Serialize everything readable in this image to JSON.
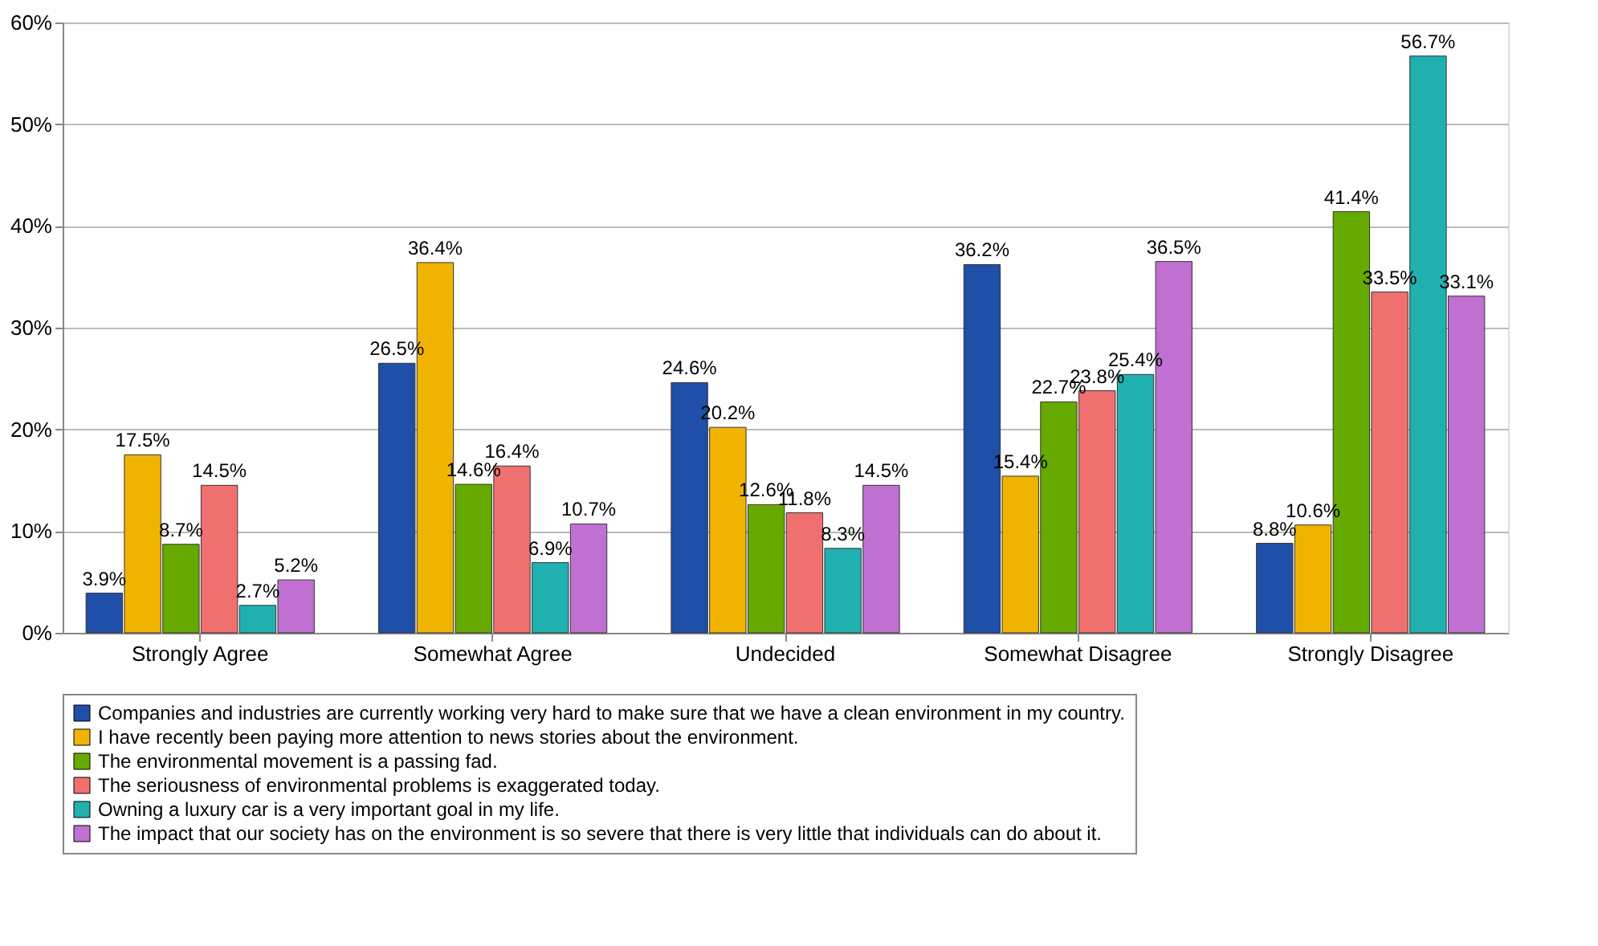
{
  "chart_data": {
    "type": "bar",
    "categories": [
      "Strongly Agree",
      "Somewhat Agree",
      "Undecided",
      "Somewhat Disagree",
      "Strongly Disagree"
    ],
    "series": [
      {
        "name": "Companies and industries are currently working very hard to make sure that we have a clean environment in my country.",
        "color": "#1f4fa8",
        "values": [
          3.9,
          26.5,
          24.6,
          36.2,
          8.8
        ],
        "value_labels": [
          "3.9%",
          "26.5%",
          "24.6%",
          "36.2%",
          "8.8%"
        ]
      },
      {
        "name": "I have recently been paying more attention to news stories about the environment.",
        "color": "#f0b400",
        "values": [
          17.5,
          36.4,
          20.2,
          15.4,
          10.6
        ],
        "value_labels": [
          "17.5%",
          "36.4%",
          "20.2%",
          "15.4%",
          "10.6%"
        ]
      },
      {
        "name": "The environmental movement is a passing fad.",
        "color": "#66aa00",
        "values": [
          8.7,
          14.6,
          12.6,
          22.7,
          41.4
        ],
        "value_labels": [
          "8.7%",
          "14.6%",
          "12.6%",
          "22.7%",
          "41.4%"
        ]
      },
      {
        "name": "The seriousness of environmental problems is exaggerated today.",
        "color": "#f07070",
        "values": [
          14.5,
          16.4,
          11.8,
          23.8,
          33.5
        ],
        "value_labels": [
          "14.5%",
          "16.4%",
          "11.8%",
          "23.8%",
          "33.5%"
        ]
      },
      {
        "name": "Owning a luxury car is a very important goal in my life.",
        "color": "#20b0b0",
        "values": [
          2.7,
          6.9,
          8.3,
          25.4,
          56.7
        ],
        "value_labels": [
          "2.7%",
          "6.9%",
          "8.3%",
          "25.4%",
          "56.7%"
        ]
      },
      {
        "name": "The impact that our society has on the environment is so severe that there is very little that individuals can do about it.",
        "color": "#c070d0",
        "values": [
          5.2,
          10.7,
          14.5,
          36.5,
          33.1
        ],
        "value_labels": [
          "5.2%",
          "10.7%",
          "14.5%",
          "36.5%",
          "33.1%"
        ]
      }
    ],
    "ylim": [
      0,
      60
    ],
    "yticks": [
      {
        "value": 0,
        "label": "0%"
      },
      {
        "value": 10,
        "label": "10%"
      },
      {
        "value": 20,
        "label": "20%"
      },
      {
        "value": 30,
        "label": "30%"
      },
      {
        "value": 40,
        "label": "40%"
      },
      {
        "value": 50,
        "label": "50%"
      },
      {
        "value": 60,
        "label": "60%"
      }
    ],
    "grid": "y",
    "legend": "bottom"
  }
}
